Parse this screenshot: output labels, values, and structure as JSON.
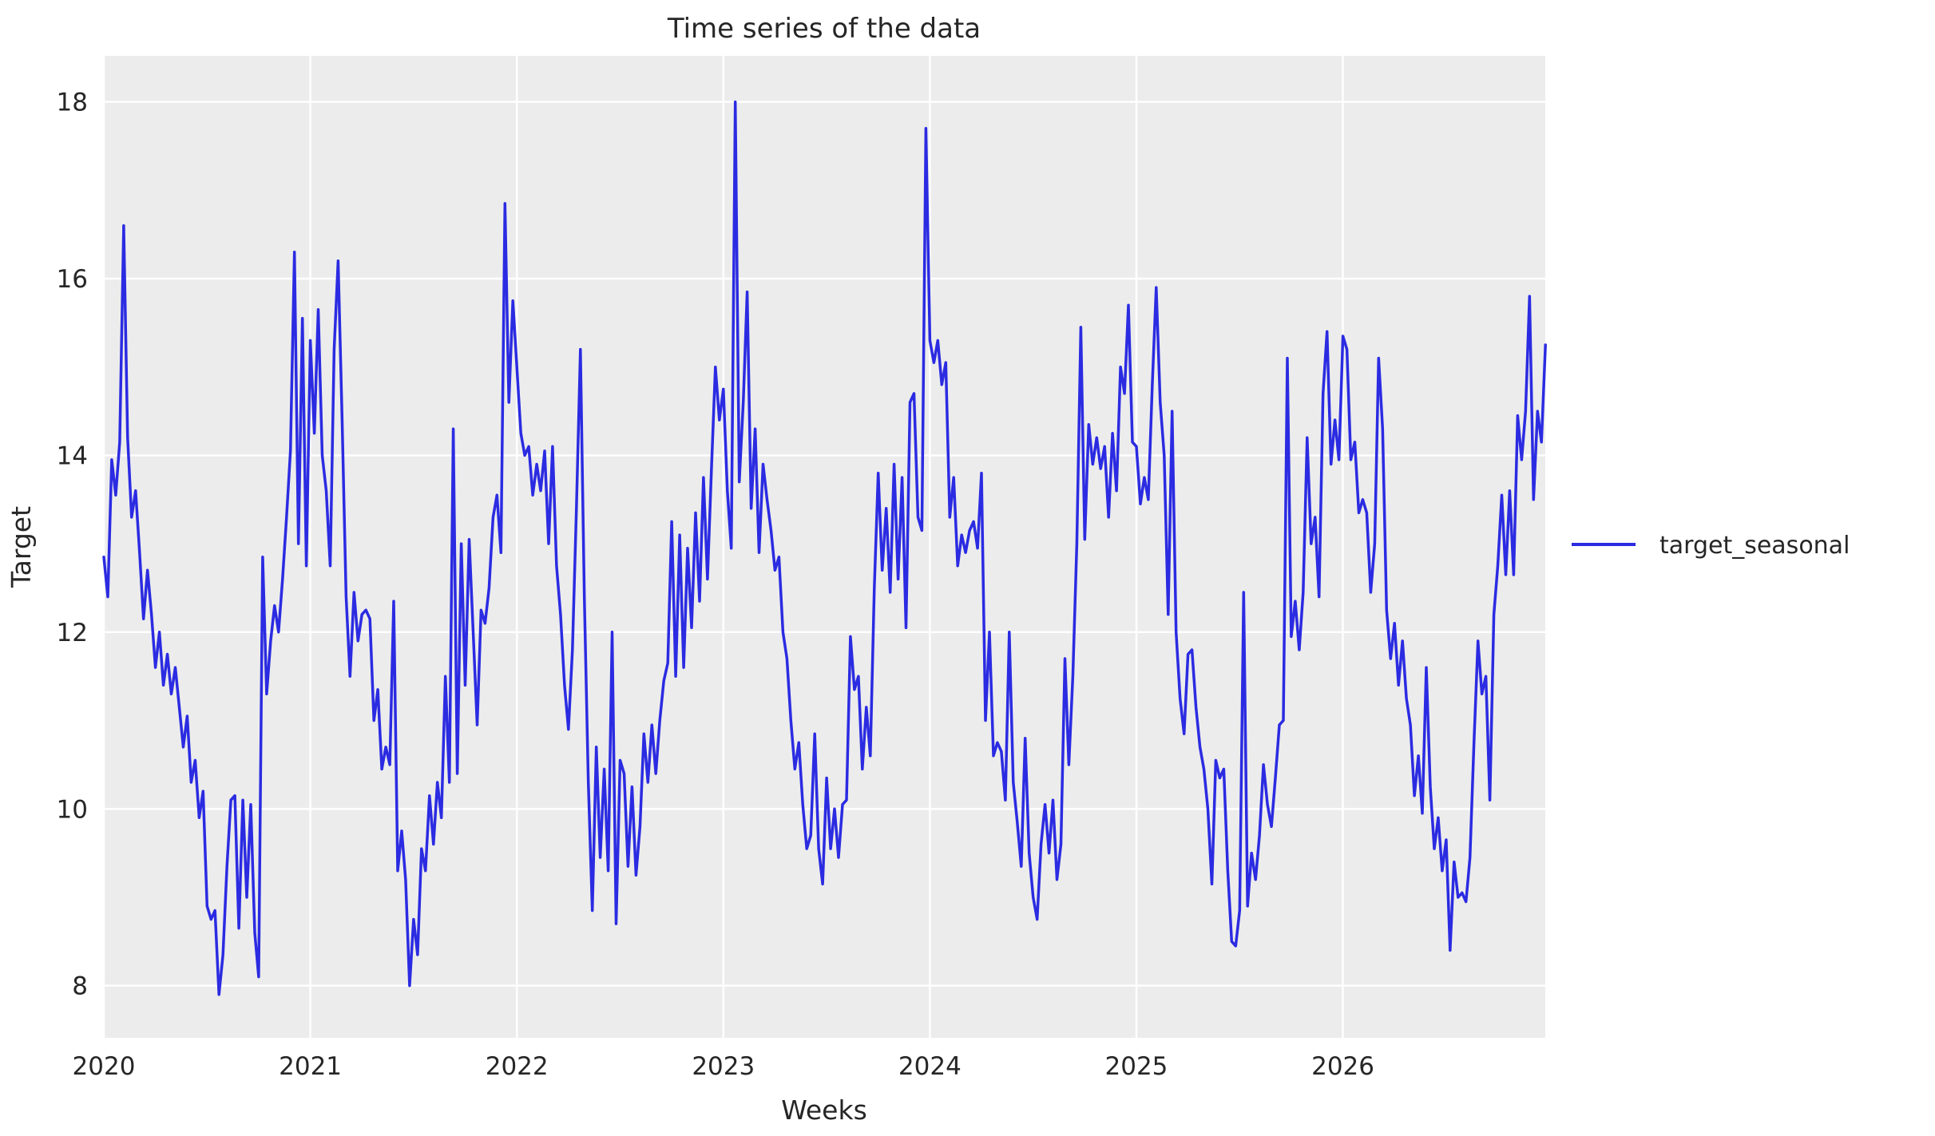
{
  "style": {
    "figure_background": "#ffffff",
    "plot_background": "#ececec",
    "grid_color": "#ffffff",
    "text_color": "#262626",
    "line_color": "#2b2be2"
  },
  "legend": {
    "label": "target_seasonal",
    "position": "center-right-outside"
  },
  "chart_data": {
    "type": "line",
    "title": "Time series of the data",
    "xlabel": "Weeks",
    "ylabel": "Target",
    "x_ticks": [
      2020,
      2021,
      2022,
      2023,
      2024,
      2025,
      2026
    ],
    "y_ticks": [
      8,
      10,
      12,
      14,
      16,
      18
    ],
    "xlim": [
      2020.0,
      2026.98
    ],
    "ylim": [
      7.41,
      18.52
    ],
    "grid": true,
    "legend_position": "right-outside",
    "series": [
      {
        "name": "target_seasonal",
        "color": "#2b2be2",
        "x_start": 2020.0,
        "x_step_years": 0.0192308,
        "values": [
          12.85,
          12.4,
          13.95,
          13.55,
          14.15,
          16.6,
          14.2,
          13.3,
          13.6,
          12.9,
          12.15,
          12.7,
          12.2,
          11.6,
          12.0,
          11.4,
          11.75,
          11.3,
          11.6,
          11.15,
          10.7,
          11.05,
          10.3,
          10.55,
          9.9,
          10.2,
          8.9,
          8.75,
          8.85,
          7.9,
          8.35,
          9.35,
          10.1,
          10.15,
          8.65,
          10.1,
          9.0,
          10.05,
          8.6,
          8.1,
          12.85,
          11.3,
          11.9,
          12.3,
          12.0,
          12.6,
          13.3,
          14.05,
          16.3,
          13.0,
          15.55,
          12.75,
          15.3,
          14.25,
          15.65,
          14.0,
          13.6,
          12.75,
          15.2,
          16.2,
          14.4,
          12.4,
          11.5,
          12.45,
          11.9,
          12.2,
          12.25,
          12.15,
          11.0,
          11.35,
          10.45,
          10.7,
          10.5,
          12.35,
          9.3,
          9.75,
          9.2,
          8.0,
          8.75,
          8.35,
          9.55,
          9.3,
          10.15,
          9.6,
          10.3,
          9.9,
          11.5,
          10.3,
          14.3,
          10.4,
          13.0,
          11.4,
          13.05,
          12.0,
          10.95,
          12.25,
          12.1,
          12.5,
          13.3,
          13.55,
          12.9,
          16.85,
          14.6,
          15.75,
          15.0,
          14.25,
          14.0,
          14.1,
          13.55,
          13.9,
          13.6,
          14.05,
          13.0,
          14.1,
          12.75,
          12.2,
          11.4,
          10.9,
          11.8,
          13.4,
          15.2,
          12.4,
          10.3,
          8.85,
          10.7,
          9.45,
          10.45,
          9.3,
          12.0,
          8.7,
          10.55,
          10.4,
          9.35,
          10.25,
          9.25,
          9.8,
          10.85,
          10.3,
          10.95,
          10.4,
          11.0,
          11.45,
          11.65,
          13.25,
          11.5,
          13.1,
          11.6,
          12.95,
          12.05,
          13.35,
          12.35,
          13.75,
          12.6,
          13.85,
          15.0,
          14.4,
          14.75,
          13.6,
          12.95,
          18.0,
          13.7,
          14.6,
          15.85,
          13.4,
          14.3,
          12.9,
          13.9,
          13.5,
          13.15,
          12.7,
          12.85,
          12.0,
          11.7,
          11.0,
          10.45,
          10.75,
          10.05,
          9.55,
          9.7,
          10.85,
          9.55,
          9.15,
          10.35,
          9.55,
          10.0,
          9.45,
          10.05,
          10.1,
          11.95,
          11.35,
          11.5,
          10.45,
          11.15,
          10.6,
          12.5,
          13.8,
          12.7,
          13.4,
          12.45,
          13.9,
          12.6,
          13.75,
          12.05,
          14.6,
          14.7,
          13.3,
          13.15,
          17.7,
          15.3,
          15.05,
          15.3,
          14.8,
          15.05,
          13.3,
          13.75,
          12.75,
          13.1,
          12.9,
          13.15,
          13.25,
          12.95,
          13.8,
          11.0,
          12.0,
          10.6,
          10.75,
          10.65,
          10.1,
          12.0,
          10.3,
          9.85,
          9.35,
          10.8,
          9.5,
          9.0,
          8.75,
          9.6,
          10.05,
          9.5,
          10.1,
          9.2,
          9.6,
          11.7,
          10.5,
          11.5,
          13.0,
          15.45,
          13.05,
          14.35,
          13.9,
          14.2,
          13.85,
          14.1,
          13.3,
          14.25,
          13.6,
          15.0,
          14.7,
          15.7,
          14.15,
          14.1,
          13.45,
          13.75,
          13.5,
          14.8,
          15.9,
          14.6,
          14.0,
          12.2,
          14.5,
          12.0,
          11.25,
          10.85,
          11.75,
          11.8,
          11.15,
          10.7,
          10.45,
          10.0,
          9.15,
          10.55,
          10.35,
          10.45,
          9.3,
          8.5,
          8.45,
          8.85,
          12.45,
          8.9,
          9.5,
          9.2,
          9.7,
          10.5,
          10.05,
          9.8,
          10.35,
          10.95,
          11.0,
          15.1,
          11.95,
          12.35,
          11.8,
          12.45,
          14.2,
          13.0,
          13.3,
          12.4,
          14.7,
          15.4,
          13.9,
          14.4,
          13.95,
          15.35,
          15.2,
          13.95,
          14.15,
          13.35,
          13.5,
          13.35,
          12.45,
          13.0,
          15.1,
          14.3,
          12.25,
          11.7,
          12.1,
          11.4,
          11.9,
          11.25,
          10.95,
          10.15,
          10.6,
          9.95,
          11.6,
          10.25,
          9.55,
          9.9,
          9.3,
          9.65,
          8.4,
          9.4,
          9.0,
          9.05,
          8.95,
          9.45,
          10.75,
          11.9,
          11.3,
          11.5,
          10.1,
          12.2,
          12.75,
          13.55,
          12.65,
          13.6,
          12.65,
          14.45,
          13.95,
          14.5,
          15.8,
          13.5,
          14.5,
          14.15,
          15.25
        ]
      }
    ]
  }
}
